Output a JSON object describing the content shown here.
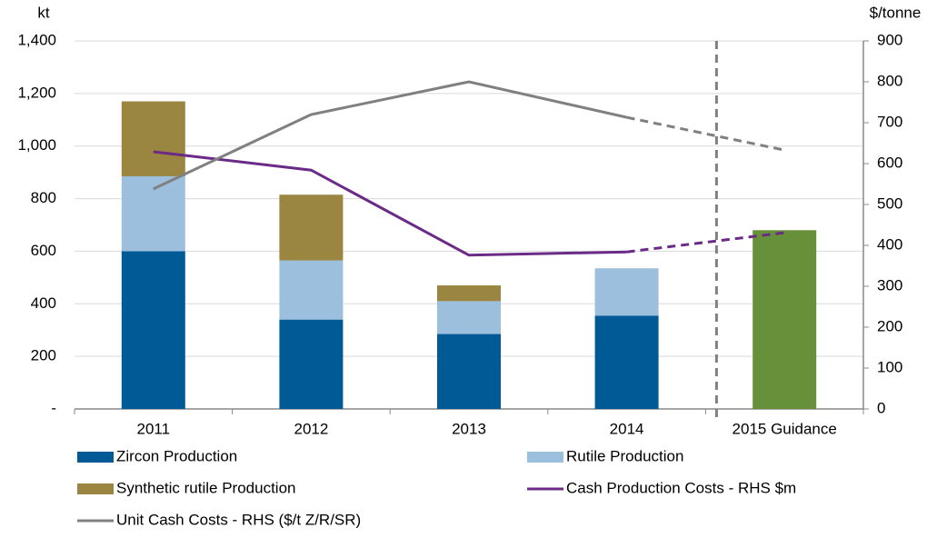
{
  "chart_data": {
    "type": "bar",
    "categories": [
      "2011",
      "2012",
      "2013",
      "2014",
      "2015 Guidance"
    ],
    "ylabel": "kt",
    "y2label": "$/tonne",
    "ylim": [
      0,
      1400
    ],
    "yticks": [
      {
        "value": 0,
        "label": "-"
      },
      200,
      400,
      600,
      800,
      {
        "value": 1000,
        "label": "1,000"
      },
      {
        "value": 1200,
        "label": "1,200"
      },
      {
        "value": 1400,
        "label": "1,400"
      }
    ],
    "y2lim": [
      0,
      900
    ],
    "y2ticks": [
      0,
      100,
      200,
      300,
      400,
      500,
      600,
      700,
      800,
      900
    ],
    "series": [
      {
        "name": "Zircon Production",
        "color": "#005a96",
        "values": [
          600,
          340,
          285,
          355,
          null
        ]
      },
      {
        "name": "Rutile Production",
        "color": "#9bbfdc",
        "values": [
          285,
          225,
          125,
          180,
          null
        ]
      },
      {
        "name": "Synthetic rutile Production",
        "color": "#9b8641",
        "values": [
          285,
          250,
          60,
          null,
          null
        ]
      },
      {
        "color": "#66913a",
        "values": [
          null,
          null,
          null,
          null,
          680
        ]
      },
      {
        "name": "Cash Production Costs - RHS $m",
        "color": "#6a2a86",
        "axis": "y2",
        "type": "line",
        "values": [
          629,
          584,
          376,
          384,
          431
        ],
        "dashed": [
          false,
          false,
          false,
          false,
          true
        ]
      },
      {
        "name": "Unit Cash Costs - RHS ($/t Z/R/SR)",
        "color": "#808080",
        "axis": "y2",
        "type": "line",
        "values": [
          538,
          720,
          800,
          713,
          633
        ],
        "dashed": [
          false,
          false,
          false,
          false,
          true
        ]
      }
    ]
  }
}
